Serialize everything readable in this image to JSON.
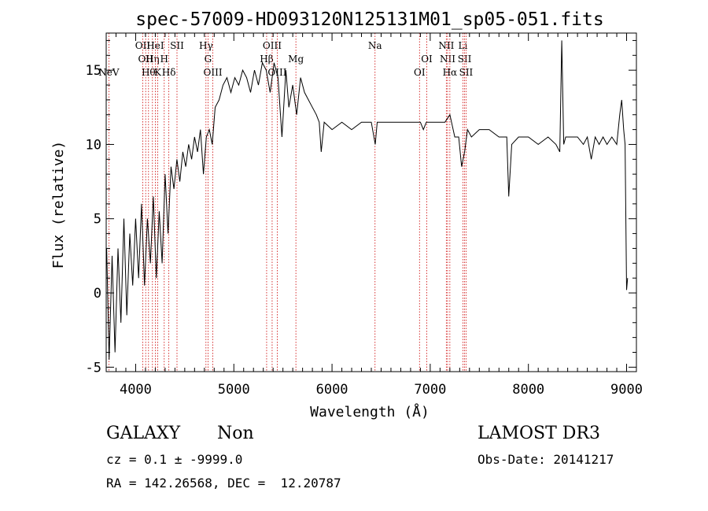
{
  "chart_data": {
    "type": "line",
    "title": "spec-57009-HD093120N125131M01_sp05-051.fits",
    "xlabel": "Wavelength (Å)",
    "ylabel": "Flux (relative)",
    "xlim": [
      3700,
      9100
    ],
    "ylim": [
      -5.3,
      17.5
    ],
    "xticks": [
      4000,
      5000,
      6000,
      7000,
      8000,
      9000
    ],
    "yticks": [
      -5,
      0,
      5,
      10,
      15
    ],
    "grid": false,
    "series": [
      {
        "color": "#000000",
        "x": [
          3705,
          3730,
          3760,
          3790,
          3820,
          3850,
          3880,
          3910,
          3940,
          3970,
          4000,
          4030,
          4060,
          4090,
          4120,
          4150,
          4180,
          4210,
          4240,
          4270,
          4300,
          4330,
          4360,
          4390,
          4420,
          4450,
          4480,
          4510,
          4540,
          4570,
          4600,
          4630,
          4660,
          4690,
          4720,
          4750,
          4780,
          4810,
          4850,
          4890,
          4930,
          4970,
          5010,
          5050,
          5090,
          5130,
          5170,
          5210,
          5250,
          5290,
          5330,
          5370,
          5410,
          5450,
          5490,
          5530,
          5560,
          5600,
          5640,
          5680,
          5720,
          5760,
          5800,
          5840,
          5870,
          5890,
          5920,
          6000,
          6100,
          6200,
          6300,
          6400,
          6440,
          6460,
          6500,
          6600,
          6700,
          6800,
          6860,
          6900,
          6930,
          6960,
          7000,
          7100,
          7150,
          7200,
          7250,
          7290,
          7320,
          7350,
          7380,
          7420,
          7500,
          7600,
          7700,
          7780,
          7800,
          7830,
          7900,
          8000,
          8100,
          8200,
          8280,
          8320,
          8340,
          8360,
          8380,
          8420,
          8500,
          8560,
          8600,
          8640,
          8680,
          8720,
          8760,
          8800,
          8850,
          8900,
          8930,
          8950,
          8970,
          8985,
          9000,
          9010
        ],
        "y": [
          3,
          -4.5,
          2.5,
          -4,
          3,
          -2,
          5,
          -1.5,
          4,
          0.5,
          5,
          1,
          6,
          0.5,
          5,
          2,
          6.5,
          1,
          5.5,
          2,
          8,
          4,
          8.5,
          7,
          9,
          7.5,
          9.5,
          8.5,
          10,
          9,
          10.5,
          9.5,
          11,
          8,
          10.5,
          11,
          10,
          12.5,
          13,
          14,
          14.5,
          13.5,
          14.5,
          14,
          15,
          14.5,
          13.5,
          15,
          14,
          15.5,
          15,
          13.5,
          15.5,
          14.5,
          10.5,
          15,
          12.5,
          14,
          12,
          14.5,
          13.5,
          13,
          12.5,
          12,
          11.5,
          9.5,
          11.5,
          11,
          11.5,
          11,
          11.5,
          11.5,
          10,
          11.5,
          11.5,
          11.5,
          11.5,
          11.5,
          11.5,
          11.5,
          11,
          11.5,
          11.5,
          11.5,
          11.5,
          12,
          10.5,
          10.5,
          8.5,
          9.5,
          11,
          10.5,
          11,
          11,
          10.5,
          10.5,
          6.5,
          10,
          10.5,
          10.5,
          10,
          10.5,
          10,
          9.5,
          17,
          10,
          10.5,
          10.5,
          10.5,
          10,
          10.5,
          9,
          10.5,
          10,
          10.5,
          10,
          10.5,
          10,
          12,
          13,
          11,
          10,
          0.2,
          1
        ]
      }
    ],
    "lines": [
      {
        "x": 3727,
        "label": "NeV",
        "row": 2
      },
      {
        "x": 4072,
        "label": "OII",
        "row": 0
      },
      {
        "x": 4102,
        "label": "OII",
        "row": 1
      },
      {
        "x": 4131,
        "label": "Hθ",
        "row": 2
      },
      {
        "x": 4171,
        "label": "Hη",
        "row": 1
      },
      {
        "x": 4200,
        "label": "HeI",
        "row": 0
      },
      {
        "x": 4225,
        "label": "K",
        "row": 2
      },
      {
        "x": 4291,
        "label": "H",
        "row": 1
      },
      {
        "x": 4338,
        "label": "Hδ",
        "row": 2
      },
      {
        "x": 4421,
        "label": "SII",
        "row": 0
      },
      {
        "x": 4716,
        "label": "Hγ",
        "row": 0
      },
      {
        "x": 4737,
        "label": "G",
        "row": 1
      },
      {
        "x": 4786,
        "label": "OIII",
        "row": 2
      },
      {
        "x": 5334,
        "label": "Hβ",
        "row": 1
      },
      {
        "x": 5390,
        "label": "OIII",
        "row": 0
      },
      {
        "x": 5442,
        "label": "OIII",
        "row": 2
      },
      {
        "x": 5632,
        "label": "Mg",
        "row": 1
      },
      {
        "x": 6438,
        "label": "Na",
        "row": 0
      },
      {
        "x": 6891,
        "label": "OI",
        "row": 2
      },
      {
        "x": 6965,
        "label": "OI",
        "row": 1
      },
      {
        "x": 7164,
        "label": "NII",
        "row": 0
      },
      {
        "x": 7177,
        "label": "NII",
        "row": 1
      },
      {
        "x": 7200,
        "label": "Hα",
        "row": 2
      },
      {
        "x": 7333,
        "label": "Li",
        "row": 0
      },
      {
        "x": 7350,
        "label": "SII",
        "row": 1
      },
      {
        "x": 7365,
        "label": "SII",
        "row": 2
      }
    ]
  },
  "info": {
    "class": "GALAXY",
    "subclass": "Non",
    "cz": "cz = 0.1 ± -9999.0",
    "radec": "RA = 142.26568, DEC =  12.20787",
    "survey": "LAMOST DR3",
    "obsdate": "Obs-Date: 20141217"
  }
}
